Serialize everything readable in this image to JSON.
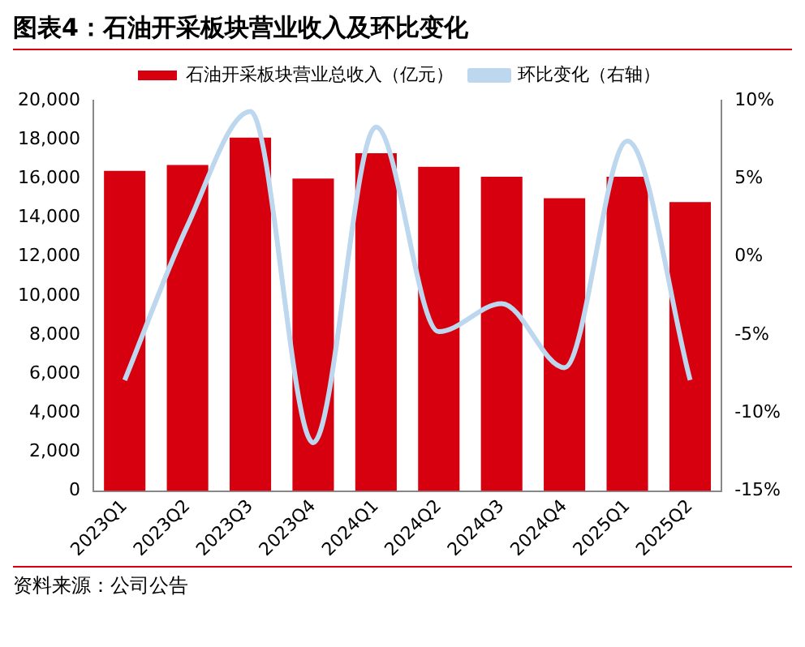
{
  "chart_data": {
    "type": "bar",
    "title": "图表4：石油开采板块营业收入及环比变化",
    "categories": [
      "2023Q1",
      "2023Q2",
      "2023Q3",
      "2023Q4",
      "2024Q1",
      "2024Q2",
      "2024Q3",
      "2024Q4",
      "2025Q1",
      "2025Q2"
    ],
    "series": [
      {
        "name": "石油开采板块营业总收入（亿元）",
        "color": "#d7000f",
        "values": [
          16400,
          16700,
          18100,
          16000,
          17300,
          16600,
          16100,
          15000,
          16100,
          14800
        ]
      },
      {
        "name": "环比变化（右轴）",
        "type": "line",
        "axis": "y2",
        "color": "#bdd7ee",
        "values": [
          -7.9,
          2.0,
          9.3,
          -11.9,
          8.3,
          -4.8,
          -3.0,
          -7.1,
          7.4,
          -7.9
        ]
      }
    ],
    "ylim": [
      0,
      20000
    ],
    "yticks": [
      0,
      {
        "value": 2000,
        "label": "2,000"
      },
      {
        "value": 4000,
        "label": "4,000"
      },
      {
        "value": 6000,
        "label": "6,000"
      },
      {
        "value": 8000,
        "label": "8,000"
      },
      {
        "value": 10000,
        "label": "10,000"
      },
      {
        "value": 12000,
        "label": "12,000"
      },
      {
        "value": 14000,
        "label": "14,000"
      },
      {
        "value": 16000,
        "label": "16,000"
      },
      {
        "value": 18000,
        "label": "18,000"
      },
      {
        "value": 20000,
        "label": "20,000"
      }
    ],
    "y2lim": [
      -15,
      10
    ],
    "y2ticks": [
      {
        "value": -15,
        "label": "-15%"
      },
      {
        "value": -10,
        "label": "-10%"
      },
      {
        "value": -5,
        "label": "-5%"
      },
      {
        "value": 0,
        "label": "0%"
      },
      {
        "value": 5,
        "label": "5%"
      },
      {
        "value": 10,
        "label": "10%"
      }
    ],
    "grid": false,
    "legend": "top",
    "marker": "none",
    "annotations": [
      "资料来源：公司公告"
    ]
  }
}
